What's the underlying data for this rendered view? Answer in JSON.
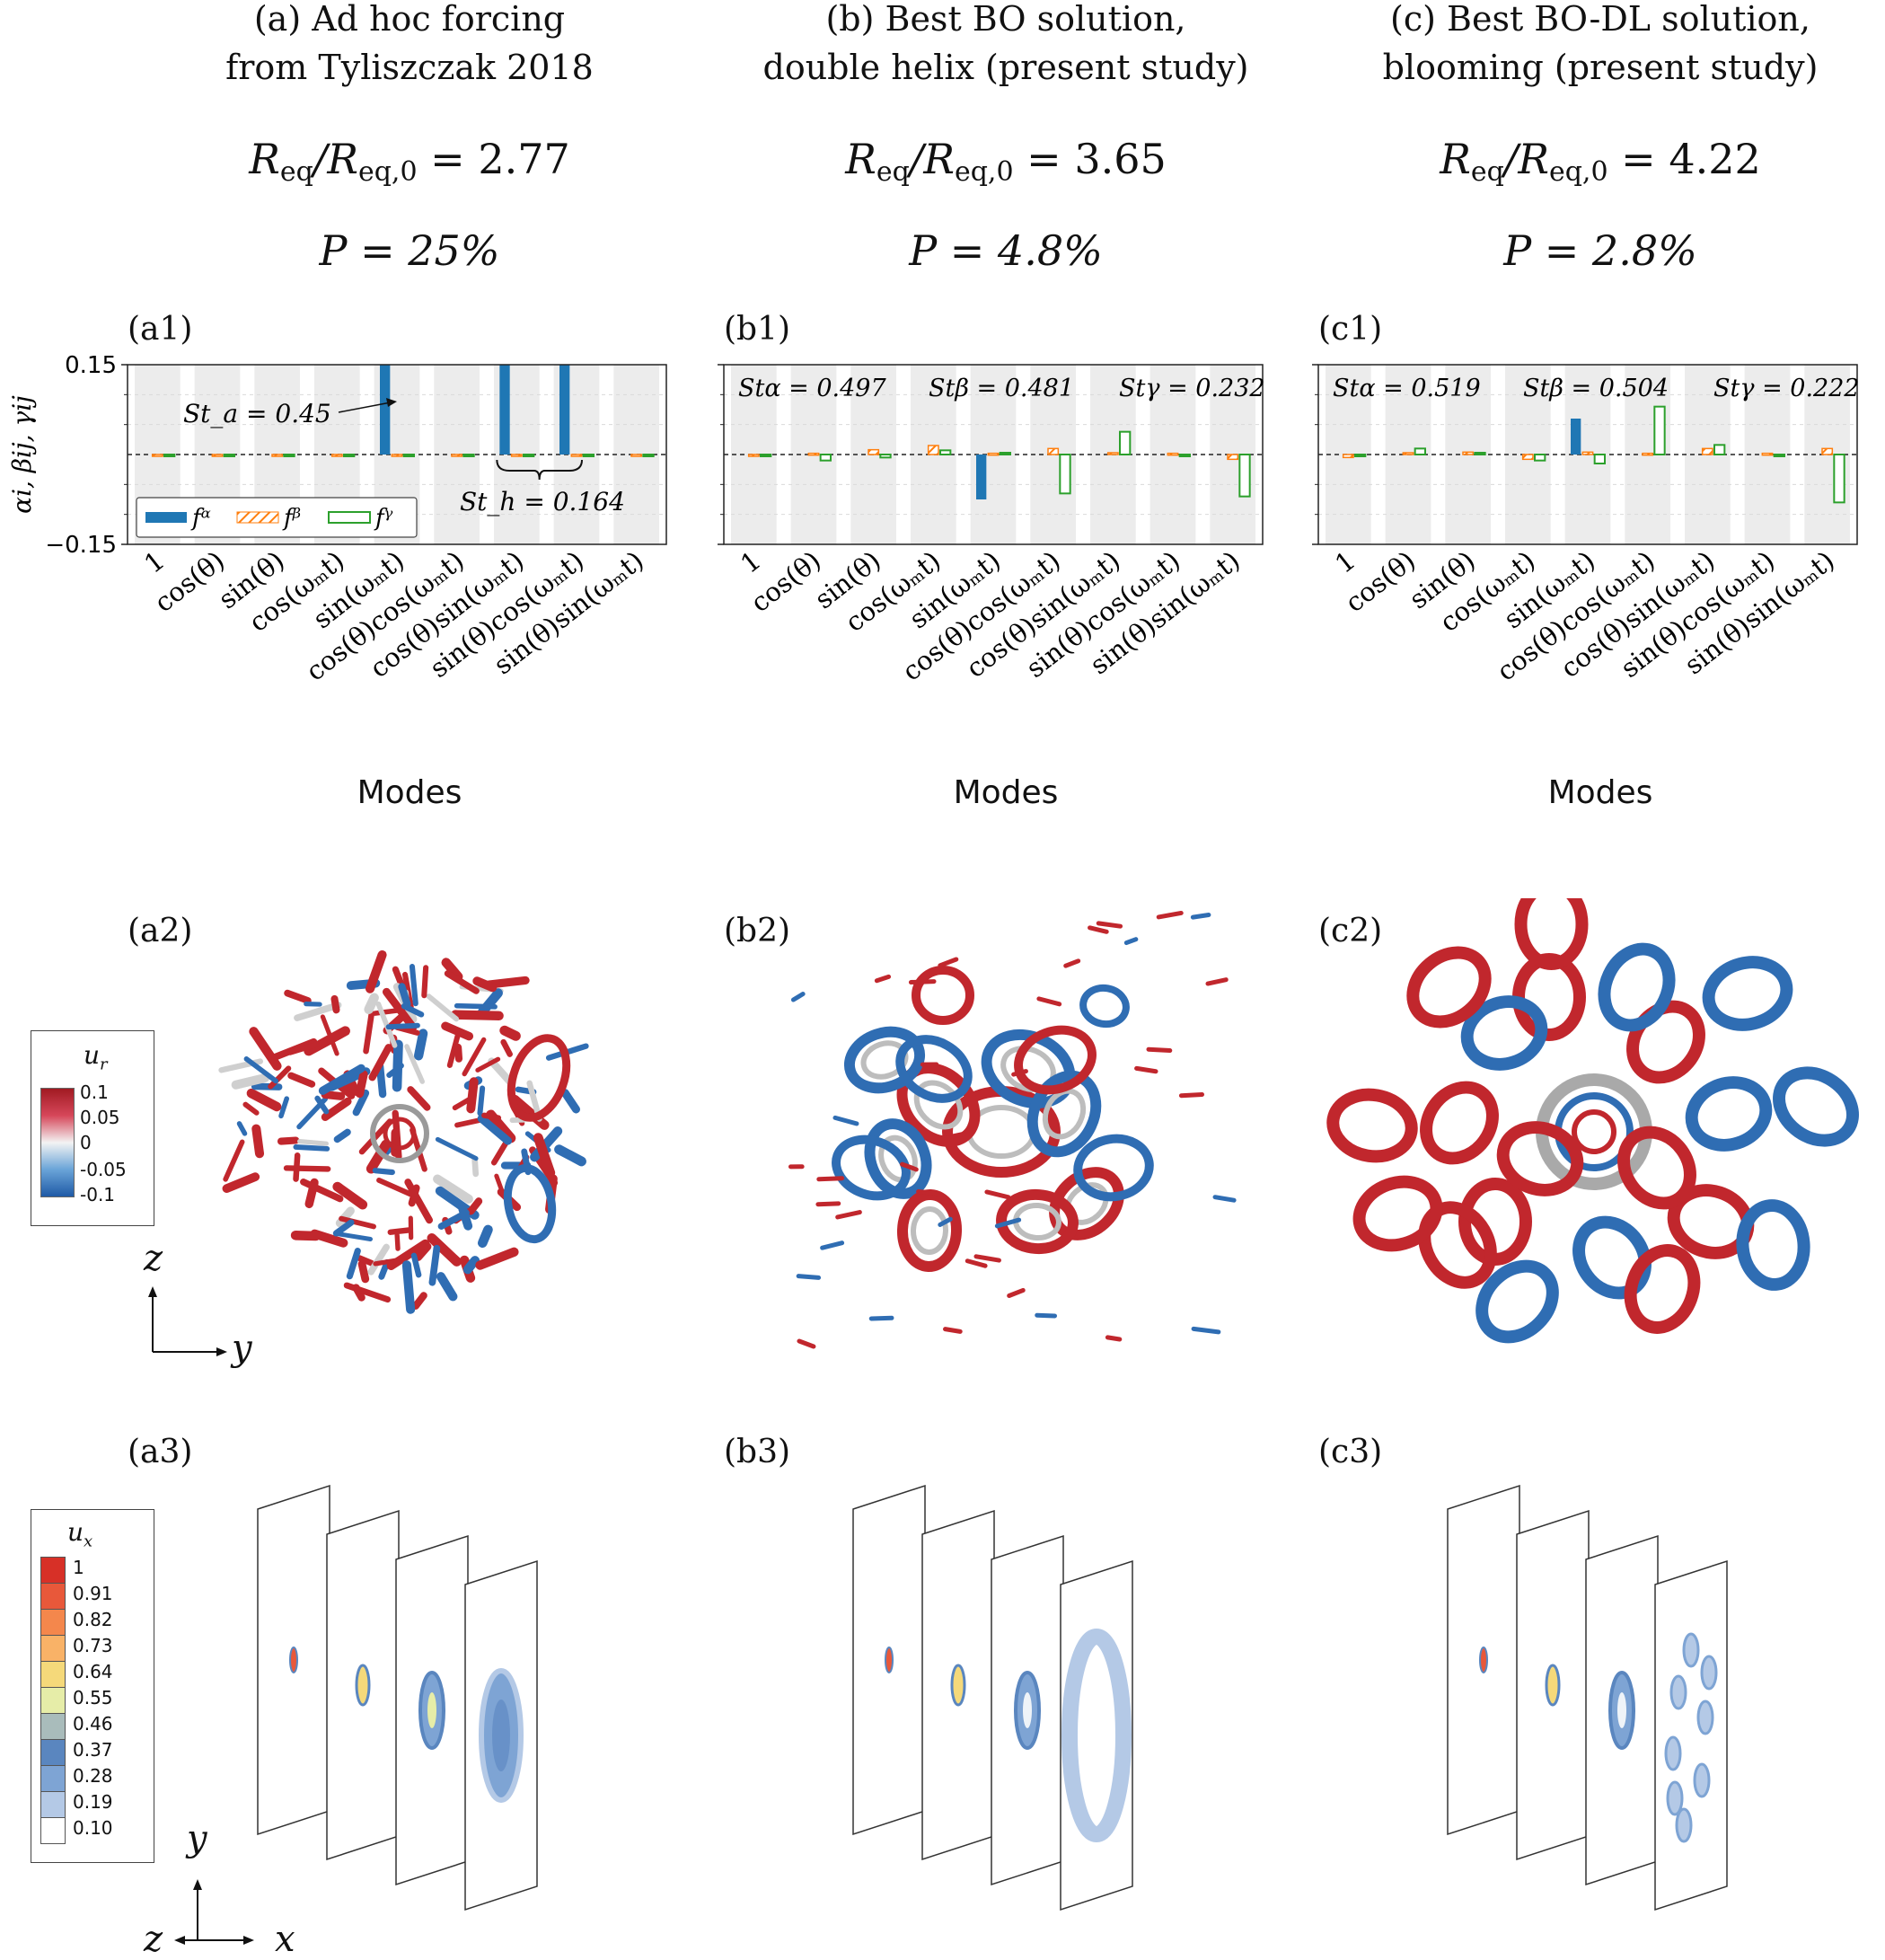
{
  "columns": [
    {
      "title1": "(a) Ad hoc forcing",
      "title2": "from Tyliszczak 2018",
      "req_label": "R",
      "req_value": "2.77",
      "power": "P = 25%",
      "p1": "(a1)",
      "p2": "(a2)",
      "p3": "(a3)",
      "xlabel": "Modes"
    },
    {
      "title1": "(b) Best BO solution,",
      "title2": "double helix (present study)",
      "req_label": "R",
      "req_value": "3.65",
      "power": "P = 4.8%",
      "p1": "(b1)",
      "p2": "(b2)",
      "p3": "(b3)",
      "xlabel": "Modes"
    },
    {
      "title1": "(c) Best BO-DL solution,",
      "title2": "blooming (present study)",
      "req_label": "R",
      "req_value": "4.22",
      "power": "P = 2.8%",
      "p1": "(c1)",
      "p2": "(c2)",
      "p3": "(c3)",
      "xlabel": "Modes"
    }
  ],
  "req_sub_num": "eq",
  "req_sub_den": "eq,0",
  "ylabel": "αi, βij, γij",
  "yticks": [
    "0.15",
    "−0.15"
  ],
  "chart_data": [
    {
      "type": "bar",
      "categories": [
        "1",
        "cos(θ)",
        "sin(θ)",
        "cos(ω_m t)",
        "sin(ω_m t)",
        "cos(θ)cos(ω_m t)",
        "cos(θ)sin(ω_m t)",
        "sin(θ)cos(ω_m t)",
        "sin(θ)sin(ω_m t)"
      ],
      "ylim": [
        -0.15,
        0.15
      ],
      "series": [
        {
          "name": "f^α",
          "values": [
            0,
            0,
            0,
            0,
            0.15,
            0,
            0.15,
            0.15,
            0
          ]
        },
        {
          "name": "f^β",
          "values": [
            0,
            0,
            0,
            0,
            0,
            0,
            0,
            0,
            0
          ]
        },
        {
          "name": "f^γ",
          "values": [
            0,
            0,
            0,
            0,
            0,
            0,
            0,
            0,
            0
          ]
        }
      ],
      "annotations": [
        "St_a = 0.45",
        "St_h = 0.164"
      ],
      "legend": "bottom-left"
    },
    {
      "type": "bar",
      "categories": [
        "1",
        "cos(θ)",
        "sin(θ)",
        "cos(ω_m t)",
        "sin(ω_m t)",
        "cos(θ)cos(ω_m t)",
        "cos(θ)sin(ω_m t)",
        "sin(θ)cos(ω_m t)",
        "sin(θ)sin(ω_m t)"
      ],
      "ylim": [
        -0.15,
        0.15
      ],
      "series": [
        {
          "name": "f^α",
          "values": [
            0.0,
            0.0,
            0.0,
            0.0,
            -0.075,
            0.0,
            0.0,
            0.0,
            0.0
          ]
        },
        {
          "name": "f^β",
          "values": [
            -0.002,
            0.002,
            0.008,
            0.015,
            0.002,
            0.01,
            0.003,
            0.002,
            -0.008
          ]
        },
        {
          "name": "f^γ",
          "values": [
            0.0,
            -0.01,
            -0.005,
            0.007,
            0.003,
            -0.065,
            0.038,
            0.0,
            -0.07
          ]
        }
      ],
      "annotations": [
        "St_α = 0.497",
        "St_β = 0.481",
        "St_γ = 0.232"
      ]
    },
    {
      "type": "bar",
      "categories": [
        "1",
        "cos(θ)",
        "sin(θ)",
        "cos(ω_m t)",
        "sin(ω_m t)",
        "cos(θ)cos(ω_m t)",
        "cos(θ)sin(ω_m t)",
        "sin(θ)cos(ω_m t)",
        "sin(θ)sin(ω_m t)"
      ],
      "ylim": [
        -0.15,
        0.15
      ],
      "series": [
        {
          "name": "f^α",
          "values": [
            0.0,
            0.0,
            0.0,
            0.0,
            0.06,
            0.0,
            0.0,
            0.0,
            0.0
          ]
        },
        {
          "name": "f^β",
          "values": [
            -0.005,
            0.003,
            0.004,
            -0.008,
            0.004,
            0.002,
            0.01,
            0.002,
            0.01
          ]
        },
        {
          "name": "f^γ",
          "values": [
            -0.003,
            0.01,
            0.003,
            -0.01,
            -0.015,
            0.08,
            0.016,
            0.0,
            -0.08
          ]
        }
      ],
      "annotations": [
        "St_α = 0.519",
        "St_β = 0.504",
        "St_γ = 0.222"
      ]
    }
  ],
  "colorbar_ur": {
    "title": "u",
    "title_sub": "r",
    "ticks": [
      "0.1",
      "0.05",
      "0",
      "-0.05",
      "-0.1"
    ]
  },
  "colorbar_ux": {
    "title": "u",
    "title_sub": "x",
    "ticks": [
      "1",
      "0.91",
      "0.82",
      "0.73",
      "0.64",
      "0.55",
      "0.46",
      "0.37",
      "0.28",
      "0.19",
      "0.10"
    ],
    "colors": [
      "#d73027",
      "#e8583a",
      "#f4874c",
      "#f9b267",
      "#f5d97a",
      "#e6eda8",
      "#a9bcbb",
      "#5a86bf",
      "#7ea4d4",
      "#b4c9e6",
      "#ffffff"
    ]
  },
  "axes2": {
    "up": "z",
    "right": "y"
  },
  "axes3": {
    "up": "y",
    "right": "x",
    "left": "z"
  },
  "colors": {
    "alpha": "#1f77b4",
    "beta": "#ff7f0e",
    "gamma": "#2ca02c",
    "red": "#c1272d",
    "blue": "#2f6db3"
  }
}
